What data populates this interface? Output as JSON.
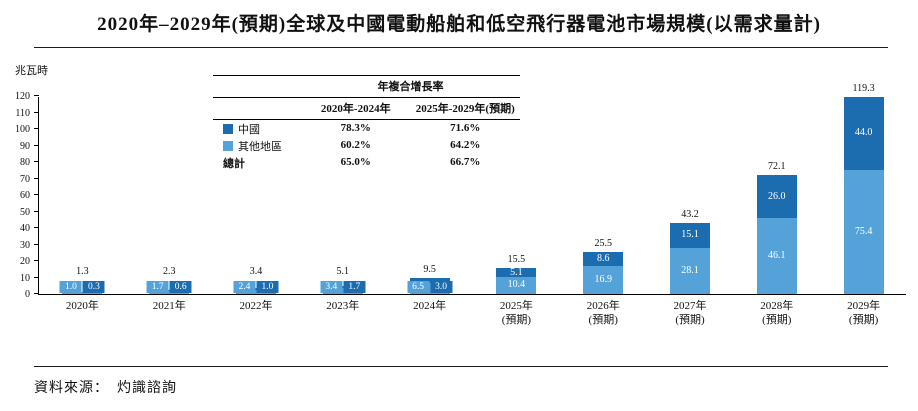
{
  "page": {
    "title": "2020年–2029年(預期)全球及中國電動船舶和低空飛行器電池市場規模(以需求量計)",
    "y_unit_label": "兆瓦時",
    "source": "資料來源：　灼識諮詢"
  },
  "colors": {
    "china": "#1c6cb0",
    "other": "#55a2d8"
  },
  "cagr_table": {
    "title": "年複合增長率",
    "columns": [
      "2020年-2024年",
      "2025年-2029年(預期)"
    ],
    "rows": [
      {
        "label": "中國",
        "values": [
          "78.3%",
          "71.6%"
        ],
        "swatch": "china"
      },
      {
        "label": "其他地區",
        "values": [
          "60.2%",
          "64.2%"
        ],
        "swatch": "other"
      },
      {
        "label": "總計",
        "values": [
          "65.0%",
          "66.7%"
        ],
        "swatch": null
      }
    ]
  },
  "chart_data": {
    "type": "bar",
    "stacked": true,
    "title": "2020年–2029年(預期)全球及中國電動船舶和低空飛行器電池市場規模(以需求量計)",
    "ylabel": "兆瓦時",
    "xlabel": "",
    "ylim": [
      0,
      120
    ],
    "yticks": [
      0,
      10,
      20,
      30,
      40,
      50,
      60,
      70,
      80,
      90,
      100,
      110,
      120
    ],
    "grid": false,
    "legend_position": "inside-cagr-table",
    "categories": [
      "2020年",
      "2021年",
      "2022年",
      "2023年",
      "2024年",
      "2025年",
      "2026年",
      "2027年",
      "2028年",
      "2029年"
    ],
    "forecast_note": "(預期)",
    "forecast_from_index": 5,
    "series": [
      {
        "name": "中國",
        "color": "#1c6cb0",
        "position": "top",
        "values": [
          0.3,
          0.6,
          1.0,
          1.7,
          3.0,
          5.1,
          8.6,
          15.1,
          26.0,
          44.0
        ]
      },
      {
        "name": "其他地區",
        "color": "#55a2d8",
        "position": "bottom",
        "values": [
          1.0,
          1.7,
          2.4,
          3.4,
          6.5,
          10.4,
          16.9,
          28.1,
          46.1,
          75.4
        ]
      }
    ],
    "totals": [
      1.3,
      2.3,
      3.4,
      5.1,
      9.5,
      15.5,
      25.5,
      43.2,
      72.1,
      119.3
    ]
  }
}
